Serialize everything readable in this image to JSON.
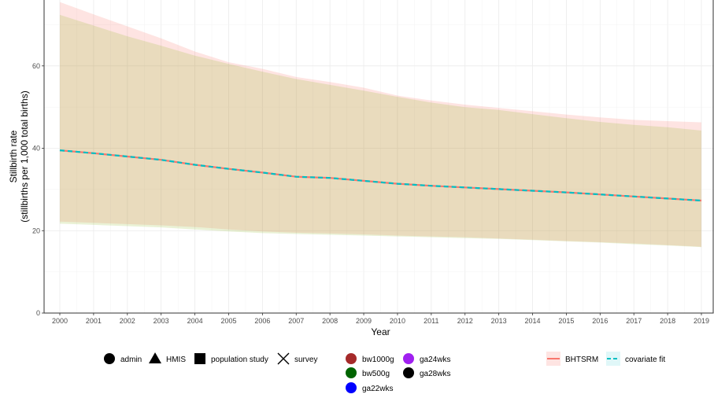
{
  "chart_data": {
    "type": "line",
    "title": "",
    "xlabel": "Year",
    "ylabel": "Stillbirth rate",
    "ylabel_sub": "(stillbirths per 1,000 total births)",
    "xlim": [
      2000,
      2019
    ],
    "ylim": [
      0,
      76
    ],
    "x_ticks": [
      2000,
      2001,
      2002,
      2003,
      2004,
      2005,
      2006,
      2007,
      2008,
      2009,
      2010,
      2011,
      2012,
      2013,
      2014,
      2015,
      2016,
      2017,
      2018,
      2019
    ],
    "y_ticks": [
      0,
      20,
      40,
      60
    ],
    "grid": true,
    "x": [
      2000,
      2001,
      2002,
      2003,
      2004,
      2005,
      2006,
      2007,
      2008,
      2009,
      2010,
      2011,
      2012,
      2013,
      2014,
      2015,
      2016,
      2017,
      2018,
      2019
    ],
    "series": [
      {
        "name": "BHTSRM",
        "color": "#F8766D",
        "values": [
          39.5,
          38.8,
          38.0,
          37.2,
          36.0,
          35.0,
          34.1,
          33.1,
          32.8,
          32.1,
          31.4,
          30.9,
          30.5,
          30.1,
          29.7,
          29.3,
          28.8,
          28.3,
          27.8,
          27.3
        ],
        "lower": [
          22.2,
          21.9,
          21.6,
          21.3,
          20.9,
          20.3,
          19.8,
          19.5,
          19.3,
          19.1,
          18.8,
          18.6,
          18.4,
          18.1,
          17.8,
          17.5,
          17.2,
          16.9,
          16.5,
          16.1
        ],
        "upper": [
          75.5,
          72.5,
          69.6,
          66.7,
          63.5,
          60.9,
          59.3,
          57.3,
          56.1,
          54.7,
          52.8,
          51.6,
          50.6,
          49.8,
          49.0,
          48.2,
          47.5,
          46.9,
          46.6,
          46.3
        ]
      },
      {
        "name": "covariate fit",
        "color": "#00BFC4",
        "values": [
          39.5,
          38.8,
          38.0,
          37.2,
          36.0,
          35.0,
          34.1,
          33.1,
          32.8,
          32.1,
          31.4,
          30.9,
          30.5,
          30.1,
          29.7,
          29.3,
          28.8,
          28.3,
          27.8,
          27.3
        ],
        "lower": [
          21.7,
          21.4,
          21.1,
          20.8,
          20.3,
          19.8,
          19.4,
          19.2,
          19.0,
          18.8,
          18.6,
          18.4,
          18.2,
          18.0,
          17.7,
          17.4,
          17.1,
          16.7,
          16.4,
          16.0
        ],
        "upper": [
          72.4,
          69.8,
          67.2,
          64.9,
          62.5,
          60.5,
          58.6,
          56.8,
          55.4,
          54.0,
          52.5,
          51.1,
          50.0,
          49.3,
          48.3,
          47.3,
          46.4,
          45.7,
          45.1,
          44.3
        ]
      }
    ],
    "legend": {
      "source_type": [
        "admin",
        "HMIS",
        "population study",
        "survey"
      ],
      "definition": [
        {
          "name": "bw1000g",
          "color": "#A52A2A"
        },
        {
          "name": "ga24wks",
          "color": "#A020F0"
        },
        {
          "name": "bw500g",
          "color": "#006400"
        },
        {
          "name": "ga28wks",
          "color": "#000000"
        },
        {
          "name": "ga22wks",
          "color": "#0000FF"
        }
      ],
      "model": [
        "BHTSRM",
        "covariate fit"
      ]
    }
  }
}
